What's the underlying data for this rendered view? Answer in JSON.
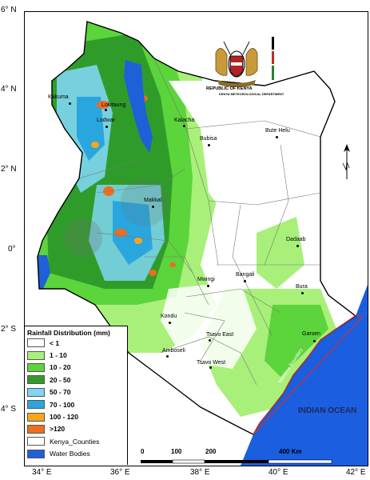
{
  "latitude_ticks": [
    "6° N",
    "4° N",
    "2° N",
    "0°",
    "2° S",
    "4° S"
  ],
  "longitude_ticks": [
    "34° E",
    "36° E",
    "38° E",
    "40° E",
    "42° E"
  ],
  "header": {
    "republic": "REPUBLIC OF KENYA",
    "department": "KENYA METEOROLOGICAL DEPARTMENT"
  },
  "legend": {
    "title": "Rainfall Distribution (mm)",
    "items": [
      {
        "label": "< 1",
        "color": "#ffffff"
      },
      {
        "label": "1 - 10",
        "color": "#a8f07a"
      },
      {
        "label": "10 - 20",
        "color": "#5cd43b"
      },
      {
        "label": "20 - 50",
        "color": "#2f9c2a"
      },
      {
        "label": "50 - 70",
        "color": "#7fd6f2"
      },
      {
        "label": "70 - 100",
        "color": "#2aa6de"
      },
      {
        "label": "100 - 120",
        "color": "#f7a51c"
      },
      {
        "label": ">120",
        "color": "#ee6d1e"
      },
      {
        "label": "Kenya_Counties",
        "color": "#ffffff"
      },
      {
        "label": "Water Bodies",
        "color": "#1f5fd8"
      }
    ]
  },
  "scale": {
    "labels": [
      "0",
      "100",
      "200",
      "400 Km"
    ]
  },
  "ocean_label": "INDIAN OCEAN",
  "maritime_label": "Maritime Boundary",
  "places": [
    "Lokitaung",
    "Kakuma",
    "Lodwar",
    "Kalacha",
    "Bubisa",
    "Bute Helu",
    "Makkal",
    "Dadaab",
    "Mwingi",
    "Bangali",
    "Bura",
    "Garsen",
    "Kondu",
    "Tsavo East",
    "Amboseli",
    "Tsavo West"
  ],
  "colors": {
    "ocean": "#1b5ee0",
    "boundary": "#d23030",
    "county_line": "#777777"
  }
}
